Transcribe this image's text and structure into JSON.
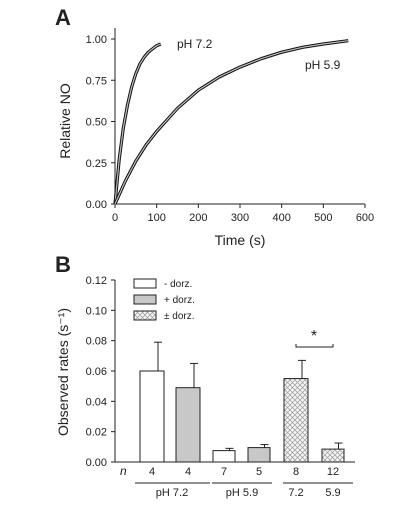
{
  "chart_data": [
    {
      "panel": "A",
      "type": "line",
      "xlabel": "Time (s)",
      "ylabel": "Relative NO",
      "xlim": [
        0,
        600
      ],
      "ylim": [
        0,
        1.0
      ],
      "x_ticks": [
        "0",
        "100",
        "200",
        "300",
        "400",
        "500",
        "600"
      ],
      "y_ticks": [
        "0.00",
        "0.25",
        "0.50",
        "0.75",
        "1.00"
      ],
      "series": [
        {
          "name": "pH 7.2",
          "x": [
            0,
            10,
            20,
            30,
            40,
            50,
            60,
            70,
            80,
            90,
            100,
            110
          ],
          "y": [
            0,
            0.27,
            0.46,
            0.6,
            0.71,
            0.79,
            0.85,
            0.89,
            0.92,
            0.94,
            0.96,
            0.97
          ]
        },
        {
          "name": "pH 5.9",
          "x": [
            0,
            25,
            50,
            75,
            100,
            150,
            200,
            250,
            300,
            350,
            400,
            450,
            500,
            560
          ],
          "y": [
            0,
            0.14,
            0.26,
            0.36,
            0.44,
            0.58,
            0.69,
            0.77,
            0.83,
            0.88,
            0.92,
            0.95,
            0.97,
            0.99
          ]
        }
      ],
      "annotations": [
        "pH 7.2",
        "pH 5.9"
      ]
    },
    {
      "panel": "B",
      "type": "bar",
      "ylabel": "Observed rates (s⁻¹)",
      "ylim": [
        0,
        0.12
      ],
      "y_ticks": [
        "0.00",
        "0.02",
        "0.04",
        "0.06",
        "0.08",
        "0.10",
        "0.12"
      ],
      "n_label": "n",
      "bars": [
        {
          "value": 0.06,
          "error": 0.019,
          "n": "4",
          "fill": "white"
        },
        {
          "value": 0.049,
          "error": 0.016,
          "n": "4",
          "fill": "gray"
        },
        {
          "value": 0.0075,
          "error": 0.0015,
          "n": "7",
          "fill": "white"
        },
        {
          "value": 0.0095,
          "error": 0.002,
          "n": "5",
          "fill": "gray"
        },
        {
          "value": 0.055,
          "error": 0.012,
          "n": "8",
          "fill": "hatch"
        },
        {
          "value": 0.0085,
          "error": 0.004,
          "n": "12",
          "fill": "hatch"
        }
      ],
      "group_labels": [
        "pH 7.2",
        "pH 5.9",
        "7.2",
        "5.9"
      ],
      "legend": [
        "- dorz.",
        "+ dorz.",
        "± dorz."
      ],
      "significance": "*"
    }
  ]
}
